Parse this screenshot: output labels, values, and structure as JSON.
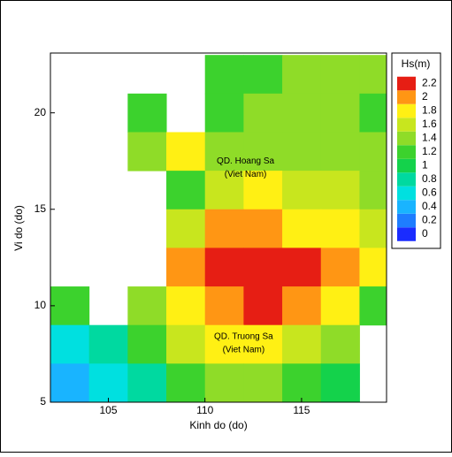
{
  "chart_data": {
    "type": "heatmap",
    "xlabel": "Kinh do (do)",
    "ylabel": "Vi do (do)",
    "xlim": [
      102,
      119.4
    ],
    "ylim": [
      5,
      23.1
    ],
    "xticks": [
      105,
      110,
      115
    ],
    "yticks": [
      5,
      10,
      15,
      20
    ],
    "x": [
      103,
      105,
      107,
      109,
      111,
      113,
      115,
      117,
      119
    ],
    "y": [
      22,
      20,
      18,
      16,
      14,
      12,
      10,
      8,
      6
    ],
    "z": [
      [
        null,
        null,
        null,
        null,
        1.2,
        1.2,
        1.4,
        1.4,
        1.4
      ],
      [
        null,
        null,
        1.3,
        null,
        1.2,
        1.4,
        1.4,
        1.4,
        1.3
      ],
      [
        null,
        null,
        1.4,
        1.8,
        1.4,
        1.4,
        1.5,
        1.5,
        1.4
      ],
      [
        null,
        null,
        null,
        1.2,
        1.6,
        1.8,
        1.7,
        1.6,
        1.5
      ],
      [
        null,
        null,
        null,
        1.6,
        2.0,
        2.1,
        1.9,
        1.8,
        1.6
      ],
      [
        null,
        null,
        null,
        2.0,
        2.2,
        2.2,
        2.2,
        2.0,
        1.8
      ],
      [
        1.2,
        null,
        1.4,
        1.8,
        2.1,
        2.2,
        2.1,
        1.8,
        1.3
      ],
      [
        0.6,
        0.8,
        1.2,
        1.6,
        1.8,
        1.8,
        1.7,
        1.4,
        null
      ],
      [
        0.4,
        0.6,
        0.8,
        1.2,
        1.4,
        1.4,
        1.3,
        1.0,
        null
      ]
    ],
    "colorbar": {
      "title": "Hs(m)",
      "ticks": [
        0,
        0.2,
        0.4,
        0.6,
        0.8,
        1,
        1.2,
        1.4,
        1.6,
        1.8,
        2,
        2.2
      ],
      "colors": [
        "#1a2cff",
        "#1e7dff",
        "#19b4ff",
        "#00e0e0",
        "#00d9a0",
        "#14d24b",
        "#3cd22d",
        "#8fdc28",
        "#c8e61e",
        "#fff014",
        "#ff9614",
        "#e61e14"
      ]
    },
    "annotations": [
      {
        "text": "QD. Hoang Sa",
        "x": 112.1,
        "y": 17.5
      },
      {
        "text": "(Viet Nam)",
        "x": 112.1,
        "y": 16.8
      },
      {
        "text": "QD. Truong Sa",
        "x": 112.0,
        "y": 8.4
      },
      {
        "text": "(Viet Nam)",
        "x": 112.0,
        "y": 7.7
      }
    ]
  }
}
